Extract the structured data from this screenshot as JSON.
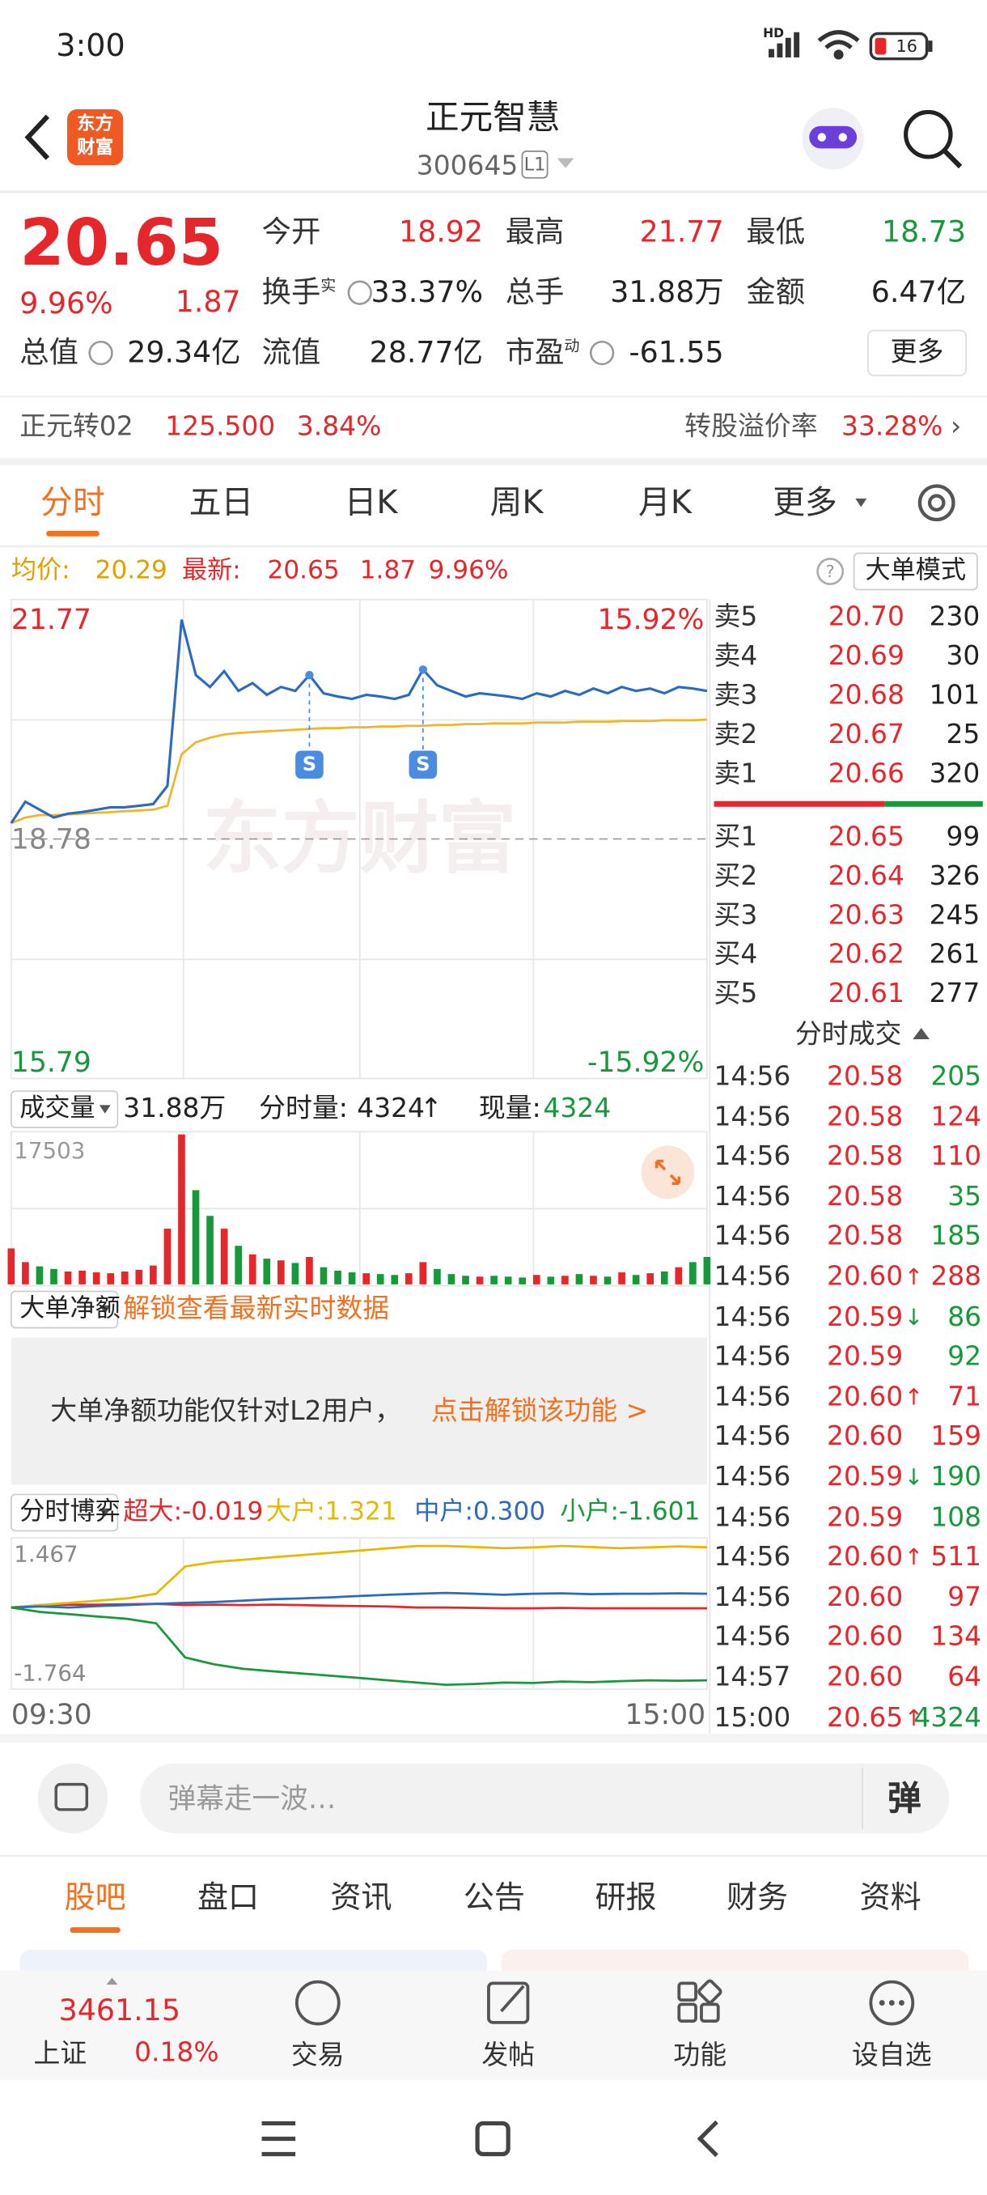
{
  "status_bar": {
    "time": "3:00",
    "hd": "HD",
    "battery": "16"
  },
  "header": {
    "logo": [
      "东方",
      "财富"
    ],
    "title": "正元智慧",
    "code": "300645",
    "level": "L1"
  },
  "quote": {
    "price": "20.65",
    "change_pct": "9.96%",
    "change": "1.87",
    "stats": [
      {
        "label": "今开",
        "value": "18.92",
        "color": "red"
      },
      {
        "label": "最高",
        "value": "21.77",
        "color": "red"
      },
      {
        "label": "最低",
        "value": "18.73",
        "color": "green"
      },
      {
        "label": "换手",
        "sup": "实",
        "value": "33.37%"
      },
      {
        "label": "总手",
        "value": "31.88万"
      },
      {
        "label": "金额",
        "value": "6.47亿"
      },
      {
        "label": "总值",
        "value": "29.34亿"
      },
      {
        "label": "流值",
        "value": "28.77亿"
      },
      {
        "label": "市盈",
        "sup": "动",
        "value": "-61.55"
      }
    ],
    "more": "更多"
  },
  "bond": {
    "name": "正元转02",
    "price": "125.500",
    "pct": "3.84%",
    "premium_label": "转股溢价率",
    "premium": "33.28%"
  },
  "tabs": [
    "分时",
    "五日",
    "日K",
    "周K",
    "月K",
    "更多"
  ],
  "info": {
    "avg_label": "均价:",
    "avg": "20.29",
    "latest_label": "最新:",
    "latest": "20.65",
    "change": "1.87",
    "pct": "9.96%",
    "mode": "大单模式"
  },
  "intraday": {
    "type": "line",
    "ylim": [
      15.79,
      21.77
    ],
    "yticks": [
      21.77,
      18.78,
      15.79
    ],
    "pct_labels": [
      "15.92%",
      "-15.92%"
    ],
    "watermark": "东方财富",
    "signals": [
      "S",
      "S"
    ],
    "price_color": "#2a6bbf",
    "average_color": "#f0b62a",
    "price": [
      18.98,
      19.25,
      19.15,
      19.05,
      19.1,
      19.12,
      19.15,
      19.18,
      19.18,
      19.2,
      19.22,
      19.45,
      21.55,
      20.85,
      20.7,
      20.9,
      20.65,
      20.75,
      20.6,
      20.7,
      20.65,
      20.85,
      20.62,
      20.58,
      20.55,
      20.6,
      20.58,
      20.55,
      20.6,
      20.92,
      20.72,
      20.65,
      20.58,
      20.62,
      20.6,
      20.58,
      20.55,
      20.62,
      20.58,
      20.65,
      20.6,
      20.68,
      20.62,
      20.7,
      20.65,
      20.68,
      20.62,
      20.7,
      20.68,
      20.65
    ],
    "average": [
      18.98,
      19.05,
      19.08,
      19.08,
      19.09,
      19.1,
      19.11,
      19.12,
      19.13,
      19.14,
      19.15,
      19.2,
      19.85,
      20.0,
      20.06,
      20.1,
      20.12,
      20.13,
      20.14,
      20.15,
      20.16,
      20.17,
      20.18,
      20.18,
      20.19,
      20.19,
      20.2,
      20.2,
      20.21,
      20.21,
      20.22,
      20.22,
      20.23,
      20.23,
      20.24,
      20.24,
      20.24,
      20.25,
      20.25,
      20.25,
      20.26,
      20.26,
      20.26,
      20.27,
      20.27,
      20.27,
      20.28,
      20.28,
      20.28,
      20.29
    ]
  },
  "volume": {
    "type": "bar",
    "label": "成交量",
    "total": "31.88万",
    "minute_label": "分时量:",
    "minute": "4324",
    "minute_arrow": "↑",
    "now_label": "现量:",
    "now": "4324",
    "ylim": [
      0,
      17503
    ],
    "yticks": [
      17503
    ],
    "up_color": "#e5262a",
    "down_color": "#17993b",
    "values": [
      4200,
      2600,
      2100,
      1800,
      1500,
      1600,
      1400,
      1300,
      1500,
      1700,
      2200,
      6500,
      17503,
      11000,
      8000,
      6500,
      4500,
      3500,
      3000,
      2800,
      2500,
      3200,
      2000,
      1600,
      1400,
      1300,
      1200,
      1100,
      1300,
      2600,
      1800,
      1200,
      1000,
      900,
      1000,
      900,
      800,
      1100,
      900,
      1000,
      1200,
      1000,
      900,
      1400,
      1100,
      1300,
      1500,
      2000,
      2600,
      3200
    ]
  },
  "big_order": {
    "label": "大单净额",
    "link": "解锁查看最新实时数据",
    "notice": "大单净额功能仅针对L2用户，",
    "action": "点击解锁该功能 >"
  },
  "fund_flow": {
    "type": "line",
    "label": "分时博弈",
    "ylim": [
      -1.764,
      1.467
    ],
    "yticks": [
      1.467,
      -1.764
    ],
    "time_labels": [
      "09:30",
      "15:00"
    ],
    "series": [
      {
        "name": "超大:",
        "current": "-0.019",
        "color": "#e5262a",
        "values": [
          0,
          0.05,
          0.06,
          0.06,
          0.07,
          0.08,
          0.05,
          0.06,
          0.05,
          0.06,
          0.05,
          0.04,
          0.03,
          0.02,
          0.0,
          0.0,
          -0.01,
          -0.02,
          -0.02,
          -0.01,
          -0.02,
          -0.02,
          -0.02,
          -0.02,
          -0.019
        ]
      },
      {
        "name": "大户:",
        "current": "1.321",
        "color": "#e8b800",
        "values": [
          0,
          0.05,
          0.1,
          0.15,
          0.2,
          0.3,
          0.9,
          1.0,
          1.05,
          1.1,
          1.15,
          1.2,
          1.25,
          1.3,
          1.35,
          1.35,
          1.33,
          1.3,
          1.32,
          1.35,
          1.33,
          1.3,
          1.32,
          1.34,
          1.321
        ]
      },
      {
        "name": "中户:",
        "current": "0.300",
        "color": "#2a6bbf",
        "values": [
          0,
          0.02,
          0.0,
          0.03,
          0.05,
          0.08,
          0.1,
          0.12,
          0.15,
          0.18,
          0.2,
          0.22,
          0.25,
          0.28,
          0.3,
          0.32,
          0.3,
          0.28,
          0.3,
          0.31,
          0.29,
          0.3,
          0.3,
          0.31,
          0.3
        ]
      },
      {
        "name": "小户:",
        "current": "-1.601",
        "color": "#17993b",
        "values": [
          0,
          -0.1,
          -0.15,
          -0.2,
          -0.25,
          -0.35,
          -1.1,
          -1.25,
          -1.35,
          -1.4,
          -1.45,
          -1.5,
          -1.55,
          -1.6,
          -1.65,
          -1.7,
          -1.68,
          -1.65,
          -1.66,
          -1.63,
          -1.64,
          -1.62,
          -1.6,
          -1.61,
          -1.601
        ]
      }
    ]
  },
  "order_book": {
    "asks": [
      {
        "label": "卖5",
        "price": "20.70",
        "volume": "230"
      },
      {
        "label": "卖4",
        "price": "20.69",
        "volume": "30"
      },
      {
        "label": "卖3",
        "price": "20.68",
        "volume": "101"
      },
      {
        "label": "卖2",
        "price": "20.67",
        "volume": "25"
      },
      {
        "label": "卖1",
        "price": "20.66",
        "volume": "320"
      }
    ],
    "bids": [
      {
        "label": "买1",
        "price": "20.65",
        "volume": "99"
      },
      {
        "label": "买2",
        "price": "20.64",
        "volume": "326"
      },
      {
        "label": "买3",
        "price": "20.63",
        "volume": "245"
      },
      {
        "label": "买4",
        "price": "20.62",
        "volume": "261"
      },
      {
        "label": "买5",
        "price": "20.61",
        "volume": "277"
      }
    ]
  },
  "trades": {
    "title": "分时成交",
    "rows": [
      {
        "time": "14:56",
        "price": "20.58",
        "volume": "205",
        "color": "green"
      },
      {
        "time": "14:56",
        "price": "20.58",
        "volume": "124",
        "color": "red"
      },
      {
        "time": "14:56",
        "price": "20.58",
        "volume": "110",
        "color": "red"
      },
      {
        "time": "14:56",
        "price": "20.58",
        "volume": "35",
        "color": "green"
      },
      {
        "time": "14:56",
        "price": "20.58",
        "volume": "185",
        "color": "green"
      },
      {
        "time": "14:56",
        "price": "20.60",
        "arrow": "↑",
        "volume": "288",
        "color": "red"
      },
      {
        "time": "14:56",
        "price": "20.59",
        "arrow": "↓",
        "volume": "86",
        "color": "green"
      },
      {
        "time": "14:56",
        "price": "20.59",
        "volume": "92",
        "color": "green"
      },
      {
        "time": "14:56",
        "price": "20.60",
        "arrow": "↑",
        "volume": "71",
        "color": "red"
      },
      {
        "time": "14:56",
        "price": "20.60",
        "volume": "159",
        "color": "red"
      },
      {
        "time": "14:56",
        "price": "20.59",
        "arrow": "↓",
        "volume": "190",
        "color": "green"
      },
      {
        "time": "14:56",
        "price": "20.59",
        "volume": "108",
        "color": "green"
      },
      {
        "time": "14:56",
        "price": "20.60",
        "arrow": "↑",
        "volume": "511",
        "color": "red"
      },
      {
        "time": "14:56",
        "price": "20.60",
        "volume": "97",
        "color": "red"
      },
      {
        "time": "14:56",
        "price": "20.60",
        "volume": "134",
        "color": "red"
      },
      {
        "time": "14:57",
        "price": "20.60",
        "volume": "64",
        "color": "red"
      },
      {
        "time": "15:00",
        "price": "20.65",
        "arrow": "↑",
        "volume": "4324",
        "color": "green"
      }
    ]
  },
  "comment": {
    "placeholder": "弹幕走一波…",
    "button": "弹"
  },
  "bottom_tabs": [
    "股吧",
    "盘口",
    "资讯",
    "公告",
    "研报",
    "财务",
    "资料"
  ],
  "index": {
    "value": "3461.15",
    "name": "上证",
    "pct": "0.18%"
  },
  "nav": [
    "交易",
    "发帖",
    "功能",
    "设自选"
  ]
}
